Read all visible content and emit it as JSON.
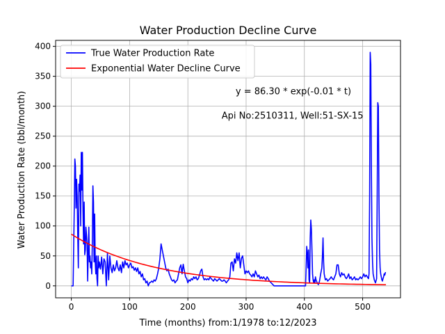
{
  "chart_data": {
    "type": "line",
    "title": "Water Production Decline Curve",
    "xlabel": "Time (months) from:1/1978 to:12/2023",
    "ylabel": "Water Production Rate (bbl/month)",
    "xlim": [
      -27,
      565
    ],
    "ylim": [
      -20,
      410
    ],
    "xticks": [
      0,
      100,
      200,
      300,
      400,
      500
    ],
    "yticks": [
      0,
      50,
      100,
      150,
      200,
      250,
      300,
      350,
      400
    ],
    "grid": true,
    "legend_position": "upper-left",
    "annotations": [
      {
        "text": "y = 86.30 * exp(-0.01 * t)",
        "x": 282,
        "y": 320
      },
      {
        "text": "Api No:2510311, Well:51-SX-15",
        "x": 258,
        "y": 279
      }
    ],
    "series": [
      {
        "name": "True Water Production Rate",
        "color": "#0000ff",
        "points": [
          [
            0,
            0
          ],
          [
            3,
            0
          ],
          [
            5,
            130
          ],
          [
            6,
            212
          ],
          [
            7,
            200
          ],
          [
            8,
            130
          ],
          [
            9,
            178
          ],
          [
            10,
            150
          ],
          [
            11,
            85
          ],
          [
            12,
            30
          ],
          [
            13,
            170
          ],
          [
            14,
            158
          ],
          [
            15,
            185
          ],
          [
            16,
            100
          ],
          [
            17,
            223
          ],
          [
            18,
            160
          ],
          [
            19,
            223
          ],
          [
            20,
            125
          ],
          [
            21,
            70
          ],
          [
            22,
            140
          ],
          [
            23,
            52
          ],
          [
            24,
            60
          ],
          [
            25,
            98
          ],
          [
            26,
            85
          ],
          [
            27,
            70
          ],
          [
            28,
            8
          ],
          [
            29,
            58
          ],
          [
            30,
            98
          ],
          [
            31,
            40
          ],
          [
            32,
            50
          ],
          [
            33,
            30
          ],
          [
            34,
            40
          ],
          [
            35,
            20
          ],
          [
            36,
            70
          ],
          [
            37,
            167
          ],
          [
            38,
            140
          ],
          [
            39,
            40
          ],
          [
            40,
            120
          ],
          [
            41,
            40
          ],
          [
            42,
            20
          ],
          [
            43,
            50
          ],
          [
            44,
            12
          ],
          [
            45,
            0
          ],
          [
            46,
            50
          ],
          [
            47,
            30
          ],
          [
            48,
            40
          ],
          [
            50,
            28
          ],
          [
            52,
            48
          ],
          [
            54,
            20
          ],
          [
            56,
            45
          ],
          [
            58,
            40
          ],
          [
            60,
            0
          ],
          [
            62,
            55
          ],
          [
            64,
            10
          ],
          [
            66,
            50
          ],
          [
            68,
            30
          ],
          [
            70,
            22
          ],
          [
            72,
            35
          ],
          [
            74,
            25
          ],
          [
            76,
            30
          ],
          [
            78,
            42
          ],
          [
            80,
            30
          ],
          [
            82,
            25
          ],
          [
            84,
            35
          ],
          [
            86,
            22
          ],
          [
            88,
            40
          ],
          [
            90,
            30
          ],
          [
            92,
            42
          ],
          [
            94,
            35
          ],
          [
            96,
            38
          ],
          [
            98,
            30
          ],
          [
            100,
            35
          ],
          [
            102,
            38
          ],
          [
            104,
            30
          ],
          [
            106,
            32
          ],
          [
            108,
            26
          ],
          [
            110,
            30
          ],
          [
            112,
            24
          ],
          [
            114,
            30
          ],
          [
            116,
            20
          ],
          [
            118,
            24
          ],
          [
            120,
            15
          ],
          [
            122,
            20
          ],
          [
            124,
            10
          ],
          [
            126,
            12
          ],
          [
            128,
            5
          ],
          [
            130,
            8
          ],
          [
            132,
            0
          ],
          [
            134,
            5
          ],
          [
            136,
            6
          ],
          [
            138,
            8
          ],
          [
            140,
            6
          ],
          [
            142,
            10
          ],
          [
            144,
            8
          ],
          [
            146,
            12
          ],
          [
            148,
            20
          ],
          [
            150,
            30
          ],
          [
            152,
            45
          ],
          [
            154,
            70
          ],
          [
            156,
            60
          ],
          [
            158,
            50
          ],
          [
            160,
            40
          ],
          [
            162,
            30
          ],
          [
            164,
            25
          ],
          [
            166,
            28
          ],
          [
            168,
            20
          ],
          [
            170,
            15
          ],
          [
            172,
            10
          ],
          [
            174,
            8
          ],
          [
            176,
            10
          ],
          [
            178,
            5
          ],
          [
            180,
            8
          ],
          [
            182,
            10
          ],
          [
            184,
            20
          ],
          [
            186,
            30
          ],
          [
            188,
            35
          ],
          [
            190,
            20
          ],
          [
            192,
            36
          ],
          [
            194,
            25
          ],
          [
            196,
            15
          ],
          [
            198,
            12
          ],
          [
            200,
            5
          ],
          [
            202,
            10
          ],
          [
            204,
            8
          ],
          [
            206,
            12
          ],
          [
            208,
            10
          ],
          [
            210,
            15
          ],
          [
            212,
            12
          ],
          [
            214,
            15
          ],
          [
            216,
            10
          ],
          [
            218,
            12
          ],
          [
            220,
            18
          ],
          [
            222,
            25
          ],
          [
            224,
            28
          ],
          [
            226,
            15
          ],
          [
            228,
            10
          ],
          [
            230,
            12
          ],
          [
            232,
            10
          ],
          [
            234,
            12
          ],
          [
            236,
            10
          ],
          [
            238,
            15
          ],
          [
            240,
            12
          ],
          [
            242,
            10
          ],
          [
            244,
            8
          ],
          [
            246,
            12
          ],
          [
            248,
            10
          ],
          [
            250,
            8
          ],
          [
            252,
            10
          ],
          [
            254,
            12
          ],
          [
            256,
            10
          ],
          [
            258,
            8
          ],
          [
            260,
            8
          ],
          [
            262,
            10
          ],
          [
            264,
            8
          ],
          [
            266,
            5
          ],
          [
            268,
            8
          ],
          [
            270,
            10
          ],
          [
            272,
            15
          ],
          [
            274,
            38
          ],
          [
            276,
            40
          ],
          [
            278,
            25
          ],
          [
            280,
            45
          ],
          [
            282,
            38
          ],
          [
            284,
            55
          ],
          [
            286,
            42
          ],
          [
            288,
            55
          ],
          [
            290,
            30
          ],
          [
            292,
            46
          ],
          [
            294,
            50
          ],
          [
            296,
            35
          ],
          [
            298,
            20
          ],
          [
            300,
            25
          ],
          [
            302,
            22
          ],
          [
            304,
            25
          ],
          [
            306,
            20
          ],
          [
            308,
            18
          ],
          [
            310,
            15
          ],
          [
            312,
            20
          ],
          [
            314,
            15
          ],
          [
            316,
            25
          ],
          [
            318,
            20
          ],
          [
            320,
            15
          ],
          [
            322,
            18
          ],
          [
            324,
            12
          ],
          [
            326,
            15
          ],
          [
            328,
            12
          ],
          [
            330,
            15
          ],
          [
            332,
            12
          ],
          [
            334,
            10
          ],
          [
            336,
            15
          ],
          [
            338,
            12
          ],
          [
            340,
            8
          ],
          [
            342,
            6
          ],
          [
            344,
            4
          ],
          [
            346,
            2
          ],
          [
            348,
            0
          ],
          [
            360,
            0
          ],
          [
            375,
            0
          ],
          [
            390,
            0
          ],
          [
            402,
            0
          ],
          [
            403,
            30
          ],
          [
            404,
            66
          ],
          [
            405,
            55
          ],
          [
            406,
            30
          ],
          [
            407,
            60
          ],
          [
            408,
            10
          ],
          [
            409,
            5
          ],
          [
            410,
            80
          ],
          [
            411,
            110
          ],
          [
            412,
            95
          ],
          [
            413,
            60
          ],
          [
            414,
            20
          ],
          [
            415,
            10
          ],
          [
            416,
            5
          ],
          [
            417,
            10
          ],
          [
            418,
            5
          ],
          [
            419,
            15
          ],
          [
            420,
            10
          ],
          [
            422,
            5
          ],
          [
            424,
            2
          ],
          [
            426,
            8
          ],
          [
            428,
            20
          ],
          [
            430,
            30
          ],
          [
            431,
            50
          ],
          [
            432,
            80
          ],
          [
            433,
            40
          ],
          [
            434,
            20
          ],
          [
            436,
            10
          ],
          [
            438,
            12
          ],
          [
            440,
            8
          ],
          [
            442,
            10
          ],
          [
            444,
            12
          ],
          [
            446,
            15
          ],
          [
            448,
            12
          ],
          [
            450,
            10
          ],
          [
            452,
            15
          ],
          [
            454,
            20
          ],
          [
            456,
            35
          ],
          [
            458,
            35
          ],
          [
            460,
            20
          ],
          [
            462,
            15
          ],
          [
            464,
            22
          ],
          [
            466,
            18
          ],
          [
            468,
            20
          ],
          [
            470,
            15
          ],
          [
            472,
            12
          ],
          [
            474,
            15
          ],
          [
            476,
            20
          ],
          [
            478,
            12
          ],
          [
            480,
            15
          ],
          [
            482,
            10
          ],
          [
            484,
            12
          ],
          [
            486,
            15
          ],
          [
            488,
            10
          ],
          [
            490,
            12
          ],
          [
            492,
            10
          ],
          [
            494,
            12
          ],
          [
            496,
            15
          ],
          [
            498,
            12
          ],
          [
            500,
            15
          ],
          [
            502,
            20
          ],
          [
            504,
            15
          ],
          [
            506,
            18
          ],
          [
            508,
            15
          ],
          [
            510,
            12
          ],
          [
            511,
            20
          ],
          [
            512,
            150
          ],
          [
            513,
            390
          ],
          [
            514,
            370
          ],
          [
            515,
            200
          ],
          [
            516,
            80
          ],
          [
            517,
            40
          ],
          [
            518,
            20
          ],
          [
            520,
            10
          ],
          [
            522,
            5
          ],
          [
            524,
            12
          ],
          [
            525,
            150
          ],
          [
            526,
            306
          ],
          [
            527,
            300
          ],
          [
            528,
            150
          ],
          [
            529,
            60
          ],
          [
            530,
            30
          ],
          [
            531,
            20
          ],
          [
            532,
            15
          ],
          [
            533,
            10
          ],
          [
            534,
            8
          ],
          [
            535,
            12
          ],
          [
            536,
            15
          ],
          [
            537,
            20
          ],
          [
            538,
            18
          ],
          [
            539,
            22
          ],
          [
            540,
            22
          ]
        ]
      },
      {
        "name": "Exponential Water Decline Curve",
        "color": "#ff0000",
        "function": {
          "a": 86.3,
          "b": 0.00713,
          "t_start": 0,
          "t_end": 540
        }
      }
    ]
  }
}
